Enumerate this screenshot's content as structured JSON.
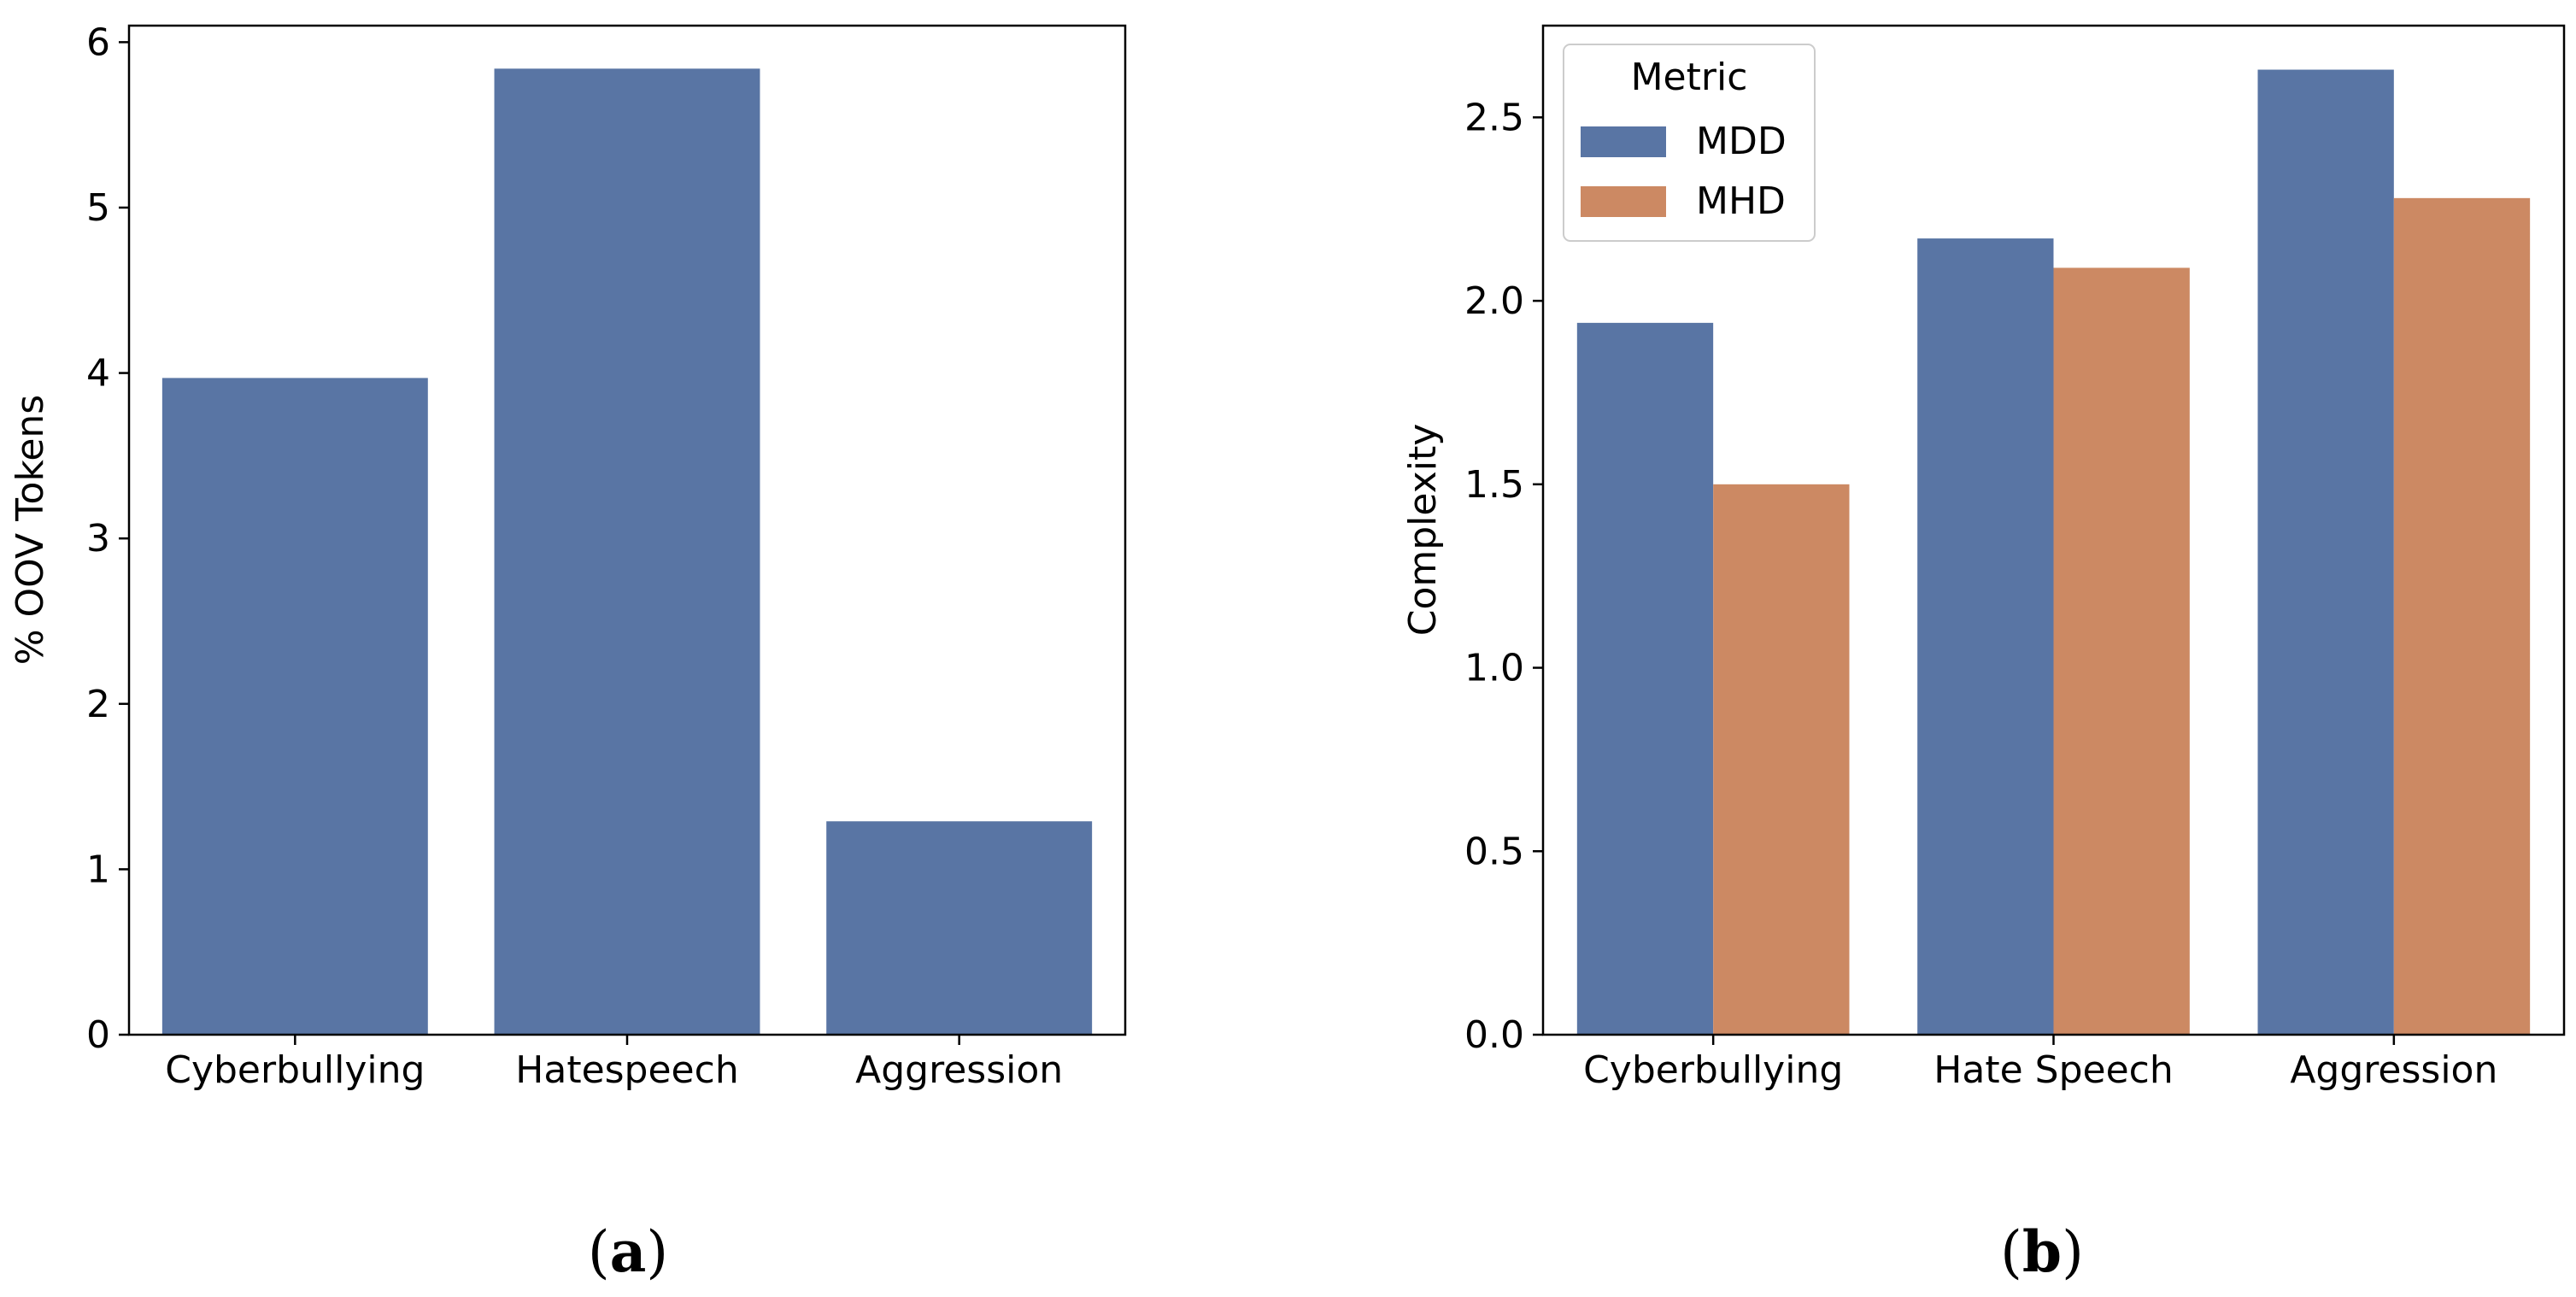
{
  "colors": {
    "mdd": "#5975a4",
    "mhd": "#cc8963"
  },
  "captions": {
    "a": {
      "open": "(",
      "letter": "a",
      "close": ")"
    },
    "b": {
      "open": "(",
      "letter": "b",
      "close": ")"
    }
  },
  "chart_data": [
    {
      "id": "a",
      "type": "bar",
      "title": "",
      "xlabel": "",
      "ylabel": "% OOV Tokens",
      "categories": [
        "Cyberbullying",
        "Hatespeech",
        "Aggression"
      ],
      "series": [
        {
          "name": "",
          "color_key": "mdd",
          "values": [
            3.97,
            5.84,
            1.29
          ]
        }
      ],
      "ylim": [
        0,
        6.1
      ],
      "yticks": [
        0,
        1,
        2,
        3,
        4,
        5,
        6
      ],
      "ytick_labels": [
        "0",
        "1",
        "2",
        "3",
        "4",
        "5",
        "6"
      ],
      "grid": false,
      "legend": null
    },
    {
      "id": "b",
      "type": "bar",
      "title": "",
      "xlabel": "",
      "ylabel": "Complexity",
      "categories": [
        "Cyberbullying",
        "Hate Speech",
        "Aggression"
      ],
      "series": [
        {
          "name": "MDD",
          "color_key": "mdd",
          "values": [
            1.94,
            2.17,
            2.63
          ]
        },
        {
          "name": "MHD",
          "color_key": "mhd",
          "values": [
            1.5,
            2.09,
            2.28
          ]
        }
      ],
      "ylim": [
        0,
        2.75
      ],
      "yticks": [
        0,
        0.5,
        1.0,
        1.5,
        2.0,
        2.5
      ],
      "ytick_labels": [
        "0.0",
        "0.5",
        "1.0",
        "1.5",
        "2.0",
        "2.5"
      ],
      "grid": false,
      "legend": {
        "title": "Metric",
        "placement": "top-left"
      }
    }
  ]
}
